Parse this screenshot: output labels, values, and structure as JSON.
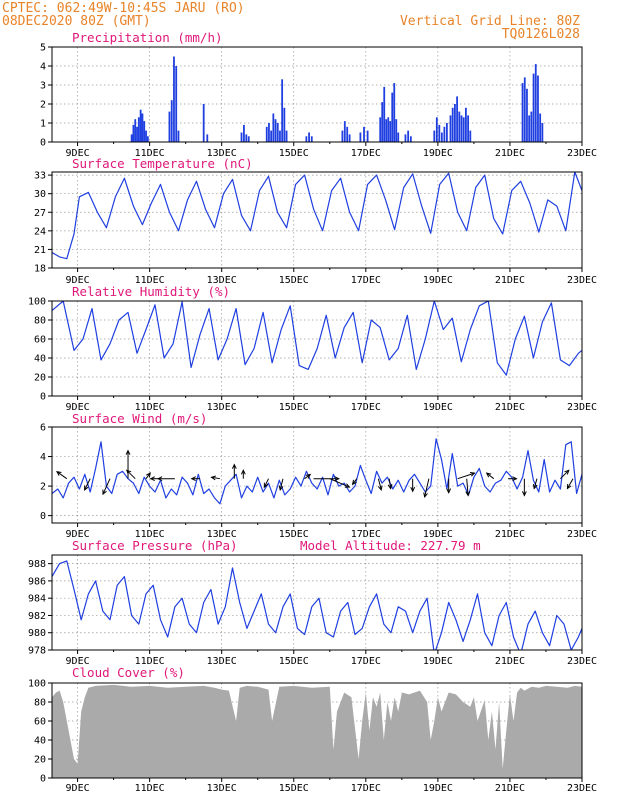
{
  "header": {
    "line1": "CPTEC:   062:49W-10:45S  JARU (RO)",
    "line2": "08DEC2020 80Z (GMT)",
    "right1": "Vertical Grid Line: 80Z",
    "right2": "TQ0126L028"
  },
  "colors": {
    "header": "#e8842a",
    "panel_title": "#e0187a",
    "series_line": "#1f3fe0",
    "bars": "#1f3fe0",
    "cloud_fill": "#aaaaaa",
    "wind_arrows": "#000000"
  },
  "chart_data": [
    {
      "id": "precip",
      "type": "bar",
      "title": "Precipitation (mm/h)",
      "ylim": [
        0,
        5
      ],
      "yticks": [
        0,
        1,
        2,
        3,
        4,
        5
      ],
      "xticks": [
        "9DEC",
        "11DEC",
        "13DEC",
        "15DEC",
        "17DEC",
        "19DEC",
        "21DEC",
        "23DEC"
      ],
      "xlim_days": [
        8.29,
        23.0
      ],
      "events": [
        {
          "start": 10.5,
          "end": 10.95,
          "values": [
            0.4,
            0.9,
            1.2,
            0.8,
            1.3,
            1.7,
            1.5,
            1.1,
            0.6,
            0.3
          ]
        },
        {
          "start": 11.55,
          "end": 11.8,
          "values": [
            1.6,
            2.2,
            4.5,
            4.0,
            0.6
          ]
        },
        {
          "start": 12.5,
          "end": 12.6,
          "values": [
            2.0,
            0.4
          ]
        },
        {
          "start": 13.55,
          "end": 13.75,
          "values": [
            0.5,
            0.9,
            0.4,
            0.3
          ]
        },
        {
          "start": 14.25,
          "end": 14.8,
          "values": [
            0.8,
            1.0,
            0.6,
            1.5,
            1.2,
            1.0,
            0.6,
            3.3,
            1.8,
            0.6
          ]
        },
        {
          "start": 15.35,
          "end": 15.5,
          "values": [
            0.3,
            0.5,
            0.3
          ]
        },
        {
          "start": 16.35,
          "end": 16.55,
          "values": [
            0.6,
            1.1,
            0.8,
            0.4
          ]
        },
        {
          "start": 16.85,
          "end": 17.05,
          "values": [
            0.5,
            0.8,
            0.6
          ]
        },
        {
          "start": 17.4,
          "end": 17.9,
          "values": [
            1.3,
            2.1,
            2.9,
            1.2,
            1.3,
            1.1,
            2.6,
            3.1,
            1.2,
            0.5
          ]
        },
        {
          "start": 18.1,
          "end": 18.25,
          "values": [
            0.4,
            0.6,
            0.3
          ]
        },
        {
          "start": 18.9,
          "end": 19.25,
          "values": [
            0.6,
            1.3,
            0.9,
            0.5,
            0.8,
            1.0
          ]
        },
        {
          "start": 19.35,
          "end": 19.9,
          "values": [
            1.4,
            1.8,
            2.0,
            2.4,
            1.6,
            1.4,
            1.3,
            1.8,
            1.4,
            0.6
          ]
        },
        {
          "start": 21.35,
          "end": 21.9,
          "values": [
            3.1,
            3.4,
            2.8,
            1.4,
            1.6,
            3.6,
            4.1,
            3.5,
            1.5,
            1.0
          ]
        }
      ]
    },
    {
      "id": "temp",
      "type": "line",
      "title": "Surface Temperature (nC)",
      "ylim": [
        18,
        33.5
      ],
      "yticks": [
        18,
        21,
        24,
        27,
        30,
        33
      ],
      "xticks": [
        "9DEC",
        "11DEC",
        "13DEC",
        "15DEC",
        "17DEC",
        "19DEC",
        "21DEC",
        "23DEC"
      ],
      "x_days": [
        8.29,
        8.5,
        8.7,
        8.9,
        9.05,
        9.3,
        9.55,
        9.8,
        10.05,
        10.3,
        10.55,
        10.8,
        11.05,
        11.3,
        11.55,
        11.8,
        12.05,
        12.3,
        12.55,
        12.8,
        13.05,
        13.3,
        13.55,
        13.8,
        14.05,
        14.3,
        14.55,
        14.8,
        15.05,
        15.3,
        15.55,
        15.8,
        16.05,
        16.3,
        16.55,
        16.8,
        17.05,
        17.3,
        17.55,
        17.8,
        18.05,
        18.3,
        18.55,
        18.8,
        19.05,
        19.3,
        19.55,
        19.8,
        20.05,
        20.3,
        20.55,
        20.8,
        21.05,
        21.3,
        21.55,
        21.8,
        22.05,
        22.3,
        22.55,
        22.8,
        23.0
      ],
      "values": [
        20.5,
        19.8,
        19.5,
        23.5,
        29.5,
        30.2,
        27.0,
        24.5,
        29.5,
        32.5,
        28.0,
        25.0,
        28.5,
        31.5,
        27.0,
        24.0,
        29.0,
        32.0,
        27.5,
        24.5,
        30.0,
        32.3,
        26.5,
        24.0,
        30.5,
        32.8,
        27.0,
        24.5,
        31.5,
        33.0,
        27.5,
        24.0,
        30.5,
        32.5,
        27.0,
        24.0,
        31.5,
        33.0,
        29.0,
        24.2,
        31.0,
        33.2,
        28.0,
        23.6,
        31.5,
        33.3,
        27.0,
        24.0,
        31.0,
        33.0,
        26.0,
        23.5,
        30.5,
        32.0,
        28.5,
        23.8,
        29.0,
        28.0,
        24.0,
        33.5,
        30.5
      ]
    },
    {
      "id": "rh",
      "type": "line",
      "title": "Relative Humidity (%)",
      "ylim": [
        0,
        100
      ],
      "yticks": [
        0,
        20,
        40,
        60,
        80,
        100
      ],
      "xticks": [
        "9DEC",
        "11DEC",
        "13DEC",
        "15DEC",
        "17DEC",
        "19DEC",
        "21DEC",
        "23DEC"
      ],
      "x_days": [
        8.29,
        8.6,
        8.9,
        9.15,
        9.4,
        9.65,
        9.9,
        10.15,
        10.4,
        10.65,
        10.9,
        11.15,
        11.4,
        11.65,
        11.9,
        12.15,
        12.4,
        12.65,
        12.9,
        13.15,
        13.4,
        13.65,
        13.9,
        14.15,
        14.4,
        14.65,
        14.9,
        15.15,
        15.4,
        15.65,
        15.9,
        16.15,
        16.4,
        16.65,
        16.9,
        17.15,
        17.4,
        17.65,
        17.9,
        18.15,
        18.4,
        18.65,
        18.9,
        19.15,
        19.4,
        19.65,
        19.9,
        20.15,
        20.4,
        20.65,
        20.9,
        21.15,
        21.4,
        21.65,
        21.9,
        22.15,
        22.4,
        22.65,
        22.9,
        23.0
      ],
      "values": [
        90,
        100,
        48,
        60,
        92,
        38,
        55,
        80,
        88,
        45,
        70,
        96,
        40,
        55,
        99,
        30,
        65,
        92,
        38,
        60,
        92,
        33,
        50,
        88,
        35,
        70,
        95,
        32,
        28,
        50,
        85,
        40,
        72,
        88,
        35,
        80,
        72,
        38,
        50,
        85,
        28,
        60,
        100,
        70,
        82,
        36,
        70,
        95,
        100,
        35,
        22,
        60,
        84,
        40,
        78,
        98,
        38,
        32,
        45,
        48
      ]
    },
    {
      "id": "wind",
      "type": "line",
      "title": "Surface Wind (m/s)",
      "ylim": [
        -0.5,
        6
      ],
      "yticks": [
        0,
        2,
        4,
        6
      ],
      "xticks": [
        "9DEC",
        "11DEC",
        "13DEC",
        "15DEC",
        "17DEC",
        "19DEC",
        "21DEC",
        "23DEC"
      ],
      "x_days": [
        8.29,
        8.45,
        8.6,
        8.75,
        8.9,
        9.05,
        9.2,
        9.35,
        9.5,
        9.65,
        9.8,
        9.95,
        10.1,
        10.25,
        10.4,
        10.55,
        10.7,
        10.85,
        11.0,
        11.15,
        11.3,
        11.45,
        11.6,
        11.75,
        11.9,
        12.05,
        12.2,
        12.35,
        12.5,
        12.65,
        12.8,
        12.95,
        13.1,
        13.25,
        13.4,
        13.55,
        13.7,
        13.85,
        14.0,
        14.15,
        14.3,
        14.45,
        14.6,
        14.75,
        14.9,
        15.05,
        15.2,
        15.35,
        15.5,
        15.65,
        15.8,
        15.95,
        16.1,
        16.25,
        16.4,
        16.55,
        16.7,
        16.85,
        17.0,
        17.15,
        17.3,
        17.45,
        17.6,
        17.75,
        17.9,
        18.05,
        18.2,
        18.35,
        18.5,
        18.65,
        18.8,
        18.95,
        19.1,
        19.25,
        19.4,
        19.55,
        19.7,
        19.85,
        20.0,
        20.15,
        20.3,
        20.45,
        20.6,
        20.75,
        20.9,
        21.05,
        21.2,
        21.35,
        21.5,
        21.65,
        21.8,
        21.95,
        22.1,
        22.25,
        22.4,
        22.55,
        22.7,
        22.85,
        23.0
      ],
      "values": [
        1.5,
        1.8,
        1.2,
        2.2,
        2.6,
        1.8,
        2.8,
        1.6,
        3.2,
        5.0,
        2.0,
        1.5,
        2.8,
        3.0,
        2.5,
        2.2,
        1.5,
        2.6,
        2.0,
        1.6,
        2.4,
        1.2,
        1.8,
        1.4,
        2.6,
        2.2,
        1.4,
        2.8,
        1.5,
        1.8,
        1.2,
        0.8,
        2.0,
        2.4,
        2.8,
        1.2,
        2.0,
        1.6,
        2.6,
        1.6,
        2.2,
        1.2,
        2.4,
        1.4,
        1.8,
        2.6,
        2.0,
        3.0,
        2.2,
        1.8,
        2.6,
        1.4,
        2.8,
        2.0,
        2.2,
        1.6,
        2.0,
        3.4,
        2.4,
        1.5,
        3.0,
        2.2,
        2.6,
        1.8,
        2.4,
        1.6,
        2.4,
        2.8,
        2.2,
        1.6,
        2.0,
        5.2,
        3.8,
        1.8,
        4.2,
        2.0,
        2.2,
        1.4,
        2.6,
        3.2,
        2.0,
        1.6,
        2.2,
        2.4,
        3.0,
        2.6,
        1.8,
        2.6,
        4.4,
        2.4,
        1.6,
        3.8,
        1.6,
        2.4,
        1.8,
        4.8,
        5.0,
        1.5,
        2.8
      ],
      "arrows": [
        {
          "x": 8.7,
          "u": -0.35,
          "v": 0.25
        },
        {
          "x": 9.35,
          "u": -0.2,
          "v": -0.4
        },
        {
          "x": 9.9,
          "u": -0.25,
          "v": -0.55
        },
        {
          "x": 10.4,
          "u": 0.0,
          "v": 1.0
        },
        {
          "x": 10.6,
          "u": -0.3,
          "v": 0.3
        },
        {
          "x": 10.9,
          "u": 0.15,
          "v": 0.2
        },
        {
          "x": 11.3,
          "u": -0.35,
          "v": 0.0
        },
        {
          "x": 11.7,
          "u": -0.6,
          "v": 0.0
        },
        {
          "x": 12.4,
          "u": -0.3,
          "v": 0.0
        },
        {
          "x": 12.95,
          "u": -0.3,
          "v": 0.05
        },
        {
          "x": 13.35,
          "u": 0.0,
          "v": 0.5
        },
        {
          "x": 13.6,
          "u": 0.0,
          "v": 0.3
        },
        {
          "x": 14.3,
          "u": -0.15,
          "v": -0.3
        },
        {
          "x": 14.7,
          "u": -0.1,
          "v": -0.4
        },
        {
          "x": 15.3,
          "u": 0.2,
          "v": 0.15
        },
        {
          "x": 15.55,
          "u": 0.9,
          "v": 0.0
        },
        {
          "x": 16.0,
          "u": 0.7,
          "v": -0.3
        },
        {
          "x": 16.75,
          "u": -0.15,
          "v": -0.2
        },
        {
          "x": 17.35,
          "u": 0.1,
          "v": -0.4
        },
        {
          "x": 17.65,
          "u": 0.05,
          "v": -0.35
        },
        {
          "x": 18.3,
          "u": 0.0,
          "v": -0.45
        },
        {
          "x": 18.75,
          "u": -0.15,
          "v": -0.65
        },
        {
          "x": 19.3,
          "u": 0.0,
          "v": -0.5
        },
        {
          "x": 19.55,
          "u": 0.6,
          "v": 0.2
        },
        {
          "x": 19.8,
          "u": 0.05,
          "v": -0.6
        },
        {
          "x": 20.55,
          "u": -0.25,
          "v": 0.2
        },
        {
          "x": 20.95,
          "u": 0.3,
          "v": 0.0
        },
        {
          "x": 21.4,
          "u": 0.0,
          "v": -0.6
        },
        {
          "x": 21.75,
          "u": -0.1,
          "v": -0.35
        },
        {
          "x": 22.4,
          "u": 0.3,
          "v": 0.3
        },
        {
          "x": 22.75,
          "u": -0.2,
          "v": -0.35
        }
      ]
    },
    {
      "id": "pres",
      "type": "line",
      "title": "Surface Pressure (hPa)",
      "annotation": "Model Altitude: 227.79 m",
      "ylim": [
        978,
        989
      ],
      "yticks": [
        978,
        980,
        982,
        984,
        986,
        988
      ],
      "xticks": [
        "9DEC",
        "11DEC",
        "13DEC",
        "15DEC",
        "17DEC",
        "19DEC",
        "21DEC",
        "23DEC"
      ],
      "x_days": [
        8.29,
        8.5,
        8.7,
        8.9,
        9.1,
        9.3,
        9.5,
        9.7,
        9.9,
        10.1,
        10.3,
        10.5,
        10.7,
        10.9,
        11.1,
        11.3,
        11.5,
        11.7,
        11.9,
        12.1,
        12.3,
        12.5,
        12.7,
        12.9,
        13.1,
        13.3,
        13.5,
        13.7,
        13.9,
        14.1,
        14.3,
        14.5,
        14.7,
        14.9,
        15.1,
        15.3,
        15.5,
        15.7,
        15.9,
        16.1,
        16.3,
        16.5,
        16.7,
        16.9,
        17.1,
        17.3,
        17.5,
        17.7,
        17.9,
        18.1,
        18.3,
        18.5,
        18.7,
        18.9,
        19.1,
        19.3,
        19.5,
        19.7,
        19.9,
        20.1,
        20.3,
        20.5,
        20.7,
        20.9,
        21.1,
        21.3,
        21.5,
        21.7,
        21.9,
        22.1,
        22.3,
        22.5,
        22.7,
        22.9,
        23.0
      ],
      "values": [
        986.5,
        988.0,
        988.3,
        985.0,
        981.5,
        984.5,
        986.0,
        982.5,
        981.5,
        985.5,
        986.5,
        982.0,
        981.0,
        984.5,
        985.5,
        981.5,
        979.5,
        983.0,
        984.0,
        981.0,
        980.0,
        983.5,
        985.0,
        981.0,
        983.0,
        987.5,
        983.5,
        980.5,
        982.5,
        984.5,
        981.0,
        980.0,
        983.0,
        984.5,
        980.5,
        979.8,
        983.0,
        984.0,
        980.0,
        979.5,
        982.5,
        983.5,
        979.8,
        980.5,
        983.0,
        984.5,
        981.0,
        980.0,
        983.0,
        982.5,
        980.0,
        982.5,
        984.0,
        977.5,
        980.0,
        983.5,
        981.5,
        979.0,
        981.5,
        984.5,
        980.0,
        978.5,
        982.0,
        983.5,
        979.5,
        977.5,
        981.0,
        982.5,
        980.0,
        978.5,
        982.0,
        981.0,
        978.0,
        979.5,
        980.5
      ]
    },
    {
      "id": "cloud",
      "type": "area",
      "title": "Cloud Cover (%)",
      "ylim": [
        0,
        100
      ],
      "yticks": [
        0,
        20,
        40,
        60,
        80,
        100
      ],
      "xticks": [
        "9DEC",
        "11DEC",
        "13DEC",
        "15DEC",
        "17DEC",
        "19DEC",
        "21DEC",
        "23DEC"
      ],
      "x_days": [
        8.29,
        8.4,
        8.5,
        8.6,
        8.7,
        8.8,
        8.9,
        9.0,
        9.1,
        9.2,
        9.3,
        9.5,
        10.0,
        10.5,
        11.0,
        11.5,
        12.0,
        12.5,
        12.8,
        13.0,
        13.2,
        13.4,
        13.5,
        13.7,
        14.0,
        14.3,
        14.4,
        14.6,
        15.0,
        15.5,
        16.0,
        16.1,
        16.2,
        16.4,
        16.6,
        16.8,
        16.9,
        17.0,
        17.1,
        17.2,
        17.3,
        17.4,
        17.5,
        17.6,
        17.7,
        17.8,
        17.9,
        18.0,
        18.2,
        18.5,
        18.7,
        18.8,
        18.9,
        19.0,
        19.1,
        19.3,
        19.5,
        19.7,
        19.9,
        20.0,
        20.1,
        20.3,
        20.4,
        20.5,
        20.6,
        20.7,
        20.8,
        20.9,
        21.0,
        21.1,
        21.2,
        21.3,
        21.4,
        21.6,
        21.8,
        22.0,
        22.3,
        22.6,
        22.8,
        23.0
      ],
      "values": [
        85,
        90,
        92,
        80,
        60,
        40,
        20,
        15,
        70,
        85,
        95,
        97,
        98,
        96,
        97,
        95,
        96,
        97,
        95,
        93,
        92,
        60,
        95,
        97,
        96,
        93,
        60,
        96,
        97,
        95,
        96,
        30,
        70,
        90,
        85,
        20,
        60,
        90,
        50,
        85,
        75,
        90,
        40,
        80,
        60,
        85,
        70,
        90,
        88,
        92,
        80,
        40,
        60,
        85,
        70,
        90,
        88,
        80,
        75,
        85,
        60,
        82,
        40,
        70,
        30,
        80,
        10,
        50,
        88,
        60,
        90,
        95,
        92,
        96,
        95,
        97,
        96,
        95,
        97,
        96
      ]
    }
  ]
}
